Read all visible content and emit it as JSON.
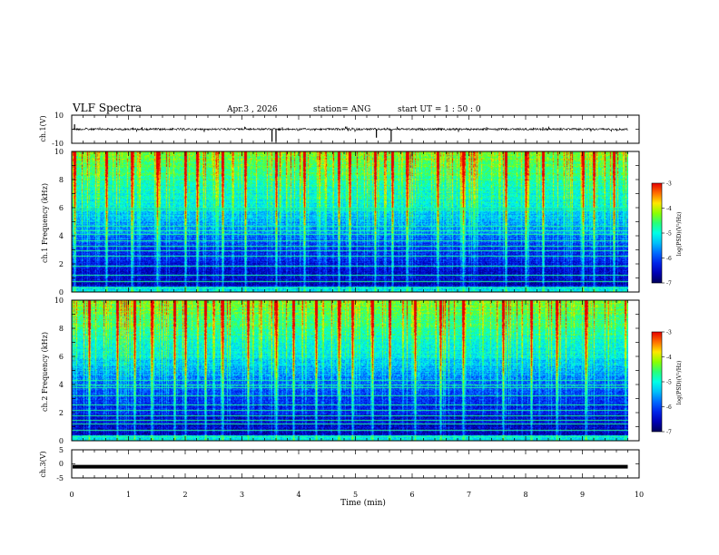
{
  "header": {
    "title": "VLF Spectra",
    "date": "Apr.3 , 2026",
    "station": "station= ANG",
    "start_ut": "start UT = 1 : 50 : 0"
  },
  "colors": {
    "colormap": [
      "#000080",
      "#0000ff",
      "#0080ff",
      "#00ffff",
      "#00ff80",
      "#80ff00",
      "#ffff00",
      "#ff8000",
      "#ff0000",
      "#ffffff"
    ]
  },
  "chart_data": [
    {
      "type": "line",
      "id": "ch1-waveform",
      "ylabel": "ch.1(V)",
      "ylim": [
        -10,
        10
      ],
      "y_ticks": [
        "10",
        "-10"
      ],
      "xlim": [
        0,
        10
      ],
      "x_unit": "min",
      "baseline": 0,
      "dips": [
        {
          "x": 0.05,
          "y": 3.5
        },
        {
          "x": 3.53,
          "y": -9
        },
        {
          "x": 3.6,
          "y": -9
        },
        {
          "x": 5.63,
          "y": -9
        },
        {
          "x": 5.37,
          "y": -6
        }
      ],
      "end_x": 9.8
    },
    {
      "type": "heatmap",
      "id": "ch1-spectrogram",
      "ylabel": "ch.1 Frequency (kHz)",
      "ylim": [
        0,
        10
      ],
      "y_ticks": [
        "0",
        "2",
        "4",
        "6",
        "8",
        "10"
      ],
      "xlim": [
        0,
        10
      ],
      "end_x": 9.8,
      "colorbar": {
        "label": "log(PSD)(V²/Hz)",
        "range": [
          -7,
          -3
        ],
        "ticks": [
          "-3",
          "-4",
          "-5",
          "-6",
          "-7"
        ]
      },
      "horizontal_lines_khz": [
        0.3,
        0.8,
        1.2,
        1.9,
        2.6,
        3.0,
        3.3,
        3.7,
        4.1,
        4.4,
        4.7,
        5.9,
        6.0
      ],
      "bright_vertical_events_min": [
        0.05,
        0.6,
        1.05,
        1.5,
        2.0,
        2.2,
        2.65,
        3.05,
        3.6,
        4.1,
        4.7,
        4.9,
        5.35,
        5.65,
        5.9,
        6.45,
        6.9,
        7.65,
        8.0,
        8.3,
        9.0,
        9.2,
        9.55
      ]
    },
    {
      "type": "heatmap",
      "id": "ch2-spectrogram",
      "ylabel": "ch.2 Frequency (kHz)",
      "ylim": [
        0,
        10
      ],
      "y_ticks": [
        "0",
        "2",
        "4",
        "6",
        "8",
        "10"
      ],
      "xlim": [
        0,
        10
      ],
      "end_x": 9.8,
      "colorbar": {
        "label": "log(PSD)(V²/Hz)",
        "range": [
          -7,
          -3
        ],
        "ticks": [
          "-3",
          "-4",
          "-5",
          "-6",
          "-7"
        ]
      },
      "horizontal_lines_khz": [
        0.3,
        0.8,
        1.2,
        1.5,
        1.8,
        2.2,
        2.6,
        3.2,
        3.8,
        4.0,
        4.3
      ],
      "bright_vertical_events_min": [
        0.3,
        0.8,
        1.1,
        1.4,
        1.8,
        2.0,
        2.35,
        2.65,
        3.1,
        3.6,
        3.9,
        4.3,
        4.7,
        4.95,
        5.3,
        5.6,
        6.05,
        6.5,
        6.9,
        7.6,
        8.1,
        8.55,
        9.05
      ]
    },
    {
      "type": "line",
      "id": "ch3-waveform",
      "ylabel": "ch.3(V)",
      "ylim": [
        -5,
        5
      ],
      "y_ticks": [
        "5",
        "0",
        "-5"
      ],
      "xlim": [
        0,
        10
      ],
      "baseline": -1,
      "end_x": 9.8
    }
  ],
  "x_axis": {
    "label": "Time (min)",
    "ticks": [
      "0",
      "1",
      "2",
      "3",
      "4",
      "5",
      "6",
      "7",
      "8",
      "9",
      "10"
    ]
  }
}
